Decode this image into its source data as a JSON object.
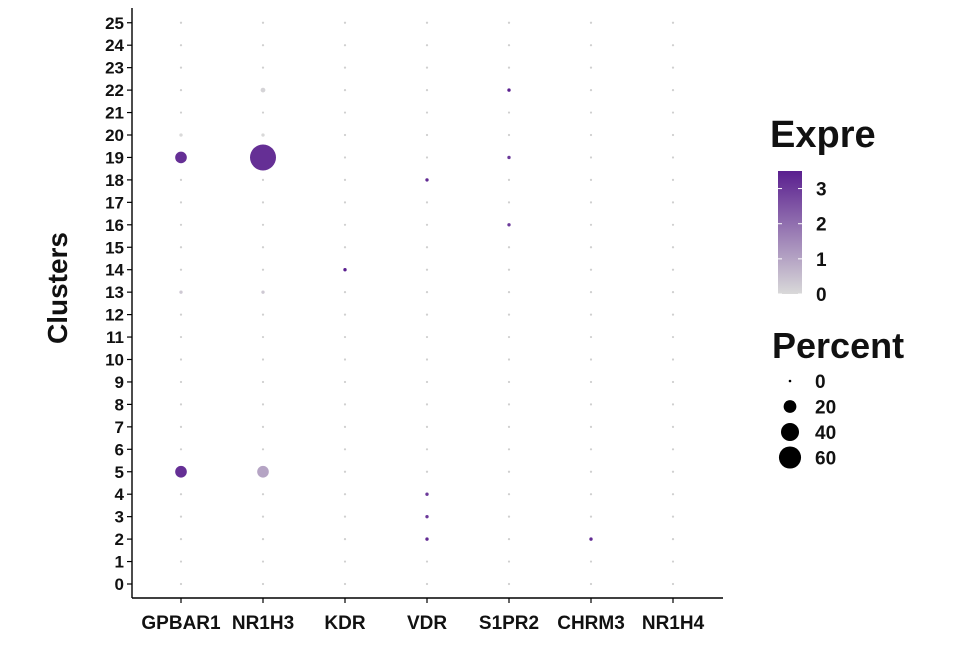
{
  "chart_data": {
    "type": "dotplot",
    "ylabel": "Clusters",
    "categories": [
      "GPBAR1",
      "NR1H3",
      "KDR",
      "VDR",
      "S1PR2",
      "CHRM3",
      "NR1H4"
    ],
    "clusters": [
      "0",
      "1",
      "2",
      "3",
      "4",
      "5",
      "6",
      "7",
      "8",
      "9",
      "10",
      "11",
      "12",
      "13",
      "14",
      "15",
      "16",
      "17",
      "18",
      "19",
      "20",
      "21",
      "22",
      "23",
      "24",
      "25"
    ],
    "points": [
      {
        "gene": "GPBAR1",
        "cluster": "19",
        "expression": 3.2,
        "percent": 12
      },
      {
        "gene": "GPBAR1",
        "cluster": "5",
        "expression": 3.2,
        "percent": 12
      },
      {
        "gene": "GPBAR1",
        "cluster": "13",
        "expression": 0.3,
        "percent": 1
      },
      {
        "gene": "GPBAR1",
        "cluster": "20",
        "expression": 0,
        "percent": 1
      },
      {
        "gene": "NR1H3",
        "cluster": "19",
        "expression": 3.2,
        "percent": 60
      },
      {
        "gene": "NR1H3",
        "cluster": "5",
        "expression": 1.0,
        "percent": 12
      },
      {
        "gene": "NR1H3",
        "cluster": "22",
        "expression": 0.1,
        "percent": 2
      },
      {
        "gene": "NR1H3",
        "cluster": "20",
        "expression": 0,
        "percent": 1
      },
      {
        "gene": "NR1H3",
        "cluster": "13",
        "expression": 0.3,
        "percent": 1
      },
      {
        "gene": "KDR",
        "cluster": "14",
        "expression": 3.5,
        "percent": 1
      },
      {
        "gene": "VDR",
        "cluster": "18",
        "expression": 3.3,
        "percent": 1
      },
      {
        "gene": "VDR",
        "cluster": "2",
        "expression": 3.3,
        "percent": 1
      },
      {
        "gene": "VDR",
        "cluster": "3",
        "expression": 3.0,
        "percent": 1
      },
      {
        "gene": "VDR",
        "cluster": "4",
        "expression": 3.0,
        "percent": 1
      },
      {
        "gene": "S1PR2",
        "cluster": "22",
        "expression": 3.5,
        "percent": 1
      },
      {
        "gene": "S1PR2",
        "cluster": "19",
        "expression": 3.0,
        "percent": 1
      },
      {
        "gene": "S1PR2",
        "cluster": "16",
        "expression": 3.0,
        "percent": 1
      },
      {
        "gene": "CHRM3",
        "cluster": "2",
        "expression": 3.3,
        "percent": 1
      }
    ],
    "color_legend": {
      "title": "Expre",
      "ticks": [
        0,
        1,
        2,
        3
      ],
      "low_color": "#d9d9d9",
      "high_color": "#5a1f8f"
    },
    "size_legend": {
      "title": "Percent",
      "ticks": [
        0,
        20,
        40,
        60
      ]
    },
    "grid": false
  }
}
